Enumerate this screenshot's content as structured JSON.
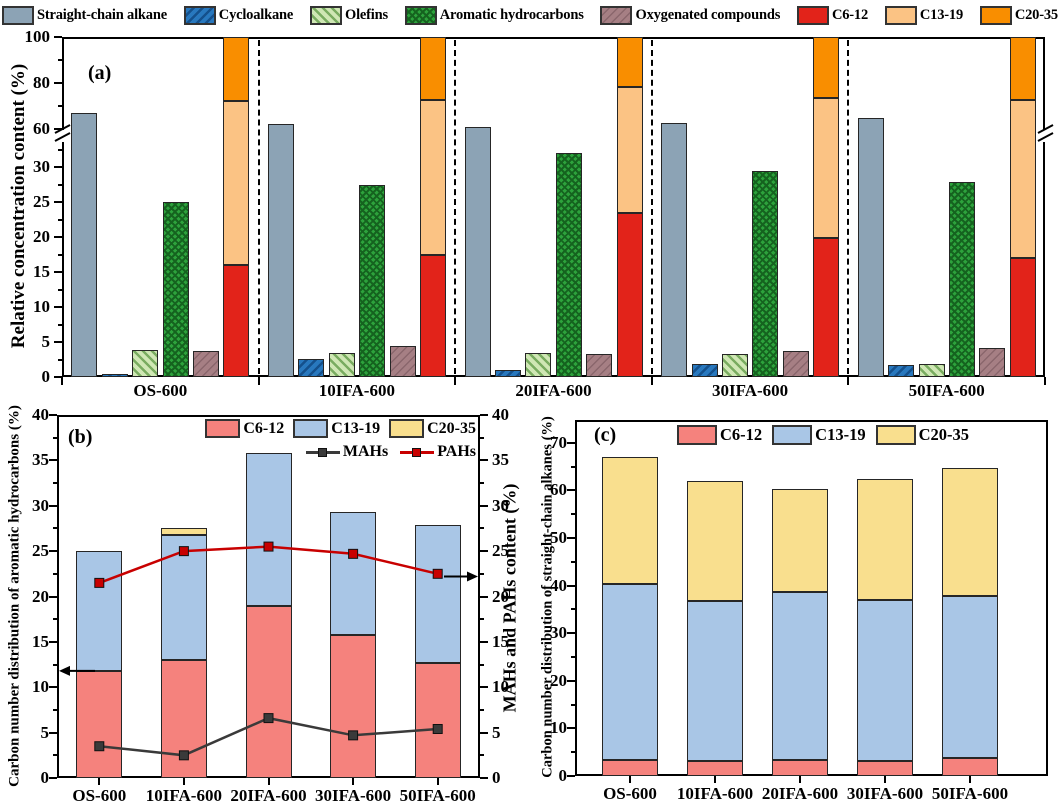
{
  "figure": {
    "background": "#ffffff"
  },
  "colors": {
    "straight": "#8ca3b5",
    "cyclo_fill": "#2878be",
    "cyclo_hatch": "#14508c",
    "olefin_fill": "#cfe7b4",
    "olefin_hatch": "#79ac60",
    "aromatic_fill": "#2da23c",
    "aromatic_hatch": "#15631f",
    "oxy_fill": "#a67f84",
    "oxy_hatch": "#8a666c",
    "c6_a": "#e2231a",
    "c13_a": "#fbc384",
    "c20_a": "#f98e00",
    "c6_bc": "#f5827d",
    "c13_bc": "#a9c6e6",
    "c20_bc": "#f9df8e",
    "mah": "#3a3a3a",
    "pah": "#c80000",
    "axis": "#000000",
    "bar_border": "#262626"
  },
  "legend_top": {
    "items": [
      {
        "label": "Straight-chain alkane",
        "style": "straight"
      },
      {
        "label": "Cycloalkane",
        "style": "cyclo"
      },
      {
        "label": "Olefins",
        "style": "olefin"
      },
      {
        "label": "Aromatic hydrocarbons",
        "style": "aromatic"
      },
      {
        "label": "Oxygenated compounds",
        "style": "oxy"
      },
      {
        "label": "C6-12",
        "style": "c6_a"
      },
      {
        "label": "C13-19",
        "style": "c13_a"
      },
      {
        "label": "C20-35",
        "style": "c20_a"
      }
    ]
  },
  "chart_data": [
    {
      "id": "a",
      "type": "bar",
      "panel_label": "(a)",
      "ylabel": "Relative concentration content (%)",
      "categories": [
        "OS-600",
        "10IFA-600",
        "20IFA-600",
        "30IFA-600",
        "50IFA-600"
      ],
      "broken_axis": {
        "lower_range": [
          0,
          35
        ],
        "upper_range": [
          55,
          100
        ],
        "lower_ticks": [
          0,
          5,
          10,
          15,
          20,
          25,
          30
        ],
        "lower_minor_ticks": [
          2.5,
          7.5,
          12.5,
          17.5,
          22.5,
          27.5,
          32.5
        ],
        "upper_ticks": [
          60,
          80,
          100
        ],
        "upper_minor_ticks": [
          70,
          90
        ]
      },
      "series": [
        {
          "name": "Straight-chain alkane",
          "style": "straight",
          "values": [
            67.0,
            62.0,
            60.5,
            62.3,
            64.8
          ]
        },
        {
          "name": "Cycloalkane",
          "style": "cyclo",
          "values": [
            0.5,
            2.6,
            1.0,
            1.8,
            1.7
          ]
        },
        {
          "name": "Olefins",
          "style": "olefin",
          "values": [
            3.8,
            3.5,
            3.4,
            3.3,
            1.8
          ]
        },
        {
          "name": "Aromatic hydrocarbons",
          "style": "aromatic",
          "values": [
            25.0,
            27.5,
            32.0,
            29.4,
            27.8
          ]
        },
        {
          "name": "Oxygenated compounds",
          "style": "oxy",
          "values": [
            3.7,
            4.5,
            3.3,
            3.7,
            4.2
          ]
        }
      ],
      "stacked_series": [
        {
          "name": "C6-12",
          "color_key": "c6_a",
          "values": [
            16.0,
            17.4,
            23.5,
            19.8,
            17.0
          ]
        },
        {
          "name": "C13-19",
          "color_key": "c13_a",
          "values": [
            56.0,
            55.0,
            54.5,
            53.7,
            55.3
          ]
        },
        {
          "name": "C20-35",
          "color_key": "c20_a",
          "values": [
            28.0,
            27.6,
            22.0,
            26.5,
            27.7
          ]
        }
      ]
    },
    {
      "id": "b",
      "type": "bar+line",
      "panel_label": "(b)",
      "ylabel_left": "Carbon number distribution of aromatic hydrocarbons (%)",
      "ylabel_right": "MAHs and PAHs content (%)",
      "ylim": [
        0,
        40
      ],
      "ytick_step": 5,
      "yminor_step": 2.5,
      "categories": [
        "OS-600",
        "10IFA-600",
        "20IFA-600",
        "30IFA-600",
        "50IFA-600"
      ],
      "stacked_series": [
        {
          "name": "C6-12",
          "color_key": "c6_bc",
          "values": [
            11.8,
            13.0,
            19.0,
            15.8,
            12.7
          ]
        },
        {
          "name": "C13-19",
          "color_key": "c13_bc",
          "values": [
            13.2,
            13.8,
            16.8,
            13.5,
            15.2
          ]
        },
        {
          "name": "C20-35",
          "color_key": "c20_bc",
          "values": [
            0,
            0.7,
            0,
            0,
            0
          ]
        }
      ],
      "line_series": [
        {
          "name": "MAHs",
          "color_key": "mah",
          "values": [
            3.5,
            2.5,
            6.6,
            4.7,
            5.4
          ]
        },
        {
          "name": "PAHs",
          "color_key": "pah",
          "values": [
            21.5,
            25.0,
            25.5,
            24.7,
            22.5
          ]
        }
      ],
      "arrows": [
        {
          "direction": "left",
          "y_value": 11.8
        },
        {
          "direction": "right",
          "y_value": 22.2
        }
      ]
    },
    {
      "id": "c",
      "type": "bar",
      "panel_label": "(c)",
      "ylabel": "Carbon number distribution of straight-chain alkanes (%)",
      "ylim": [
        0,
        74.8
      ],
      "ytick_max": 70,
      "ytick_step": 10,
      "yminor_step": 5,
      "categories": [
        "OS-600",
        "10IFA-600",
        "20IFA-600",
        "30IFA-600",
        "50IFA-600"
      ],
      "stacked_series": [
        {
          "name": "C6-12",
          "color_key": "c6_bc",
          "values": [
            3.4,
            3.2,
            3.4,
            3.2,
            3.7
          ]
        },
        {
          "name": "C13-19",
          "color_key": "c13_bc",
          "values": [
            36.9,
            33.6,
            35.2,
            33.8,
            34.1
          ]
        },
        {
          "name": "C20-35",
          "color_key": "c20_bc",
          "values": [
            26.7,
            25.2,
            21.8,
            25.3,
            27.0
          ]
        }
      ]
    }
  ]
}
